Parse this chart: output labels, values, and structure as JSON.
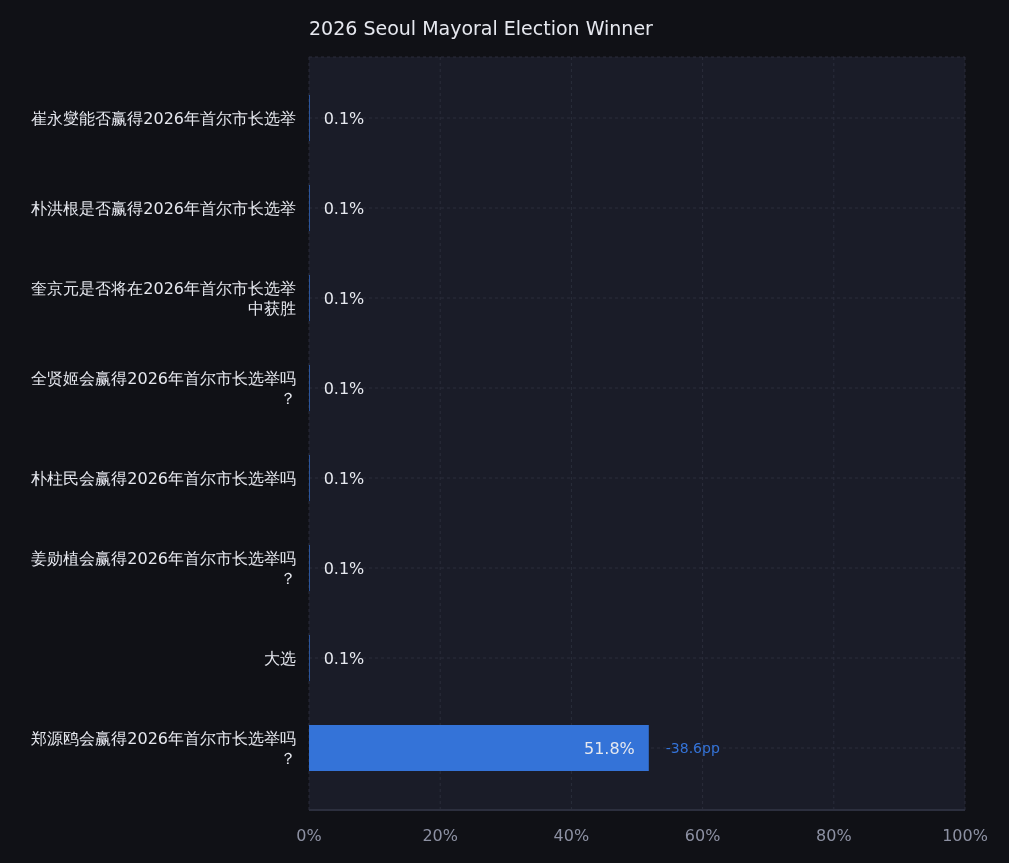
{
  "chart_data": {
    "type": "bar",
    "orientation": "horizontal",
    "title": "2026 Seoul Mayoral Election Winner",
    "categories": [
      "崔永燮能否赢得2026年首尔市长选举",
      "朴洪根是否赢得2026年首尔市长选举",
      "奎京元是否将在2026年首尔市长选举中获胜",
      "全贤姬会赢得2026年首尔市长选举吗？",
      "朴柱民会赢得2026年首尔市长选举吗",
      "姜勋植会赢得2026年首尔市长选举吗？",
      "大选",
      "郑源鸥会赢得2026年首尔市长选举吗？"
    ],
    "values": [
      0.1,
      0.1,
      0.1,
      0.1,
      0.1,
      0.1,
      0.1,
      51.8
    ],
    "color": "#3473d8",
    "value_labels": [
      "0.1%",
      "0.1%",
      "0.1%",
      "0.1%",
      "0.1%",
      "0.1%",
      "0.1%",
      "51.8%"
    ],
    "xlim": [
      0,
      100
    ],
    "xticks": [
      {
        "value": 0,
        "label": "0%"
      },
      {
        "value": 20,
        "label": "20%"
      },
      {
        "value": 40,
        "label": "40%"
      },
      {
        "value": 60,
        "label": "60%"
      },
      {
        "value": 80,
        "label": "80%"
      },
      {
        "value": 100,
        "label": "100%"
      }
    ],
    "grid": true,
    "annotations": [
      {
        "text": "-38.6pp",
        "x": 51.8,
        "y": "郑源鸥会赢得2026年首尔市长选举吗？"
      }
    ]
  }
}
